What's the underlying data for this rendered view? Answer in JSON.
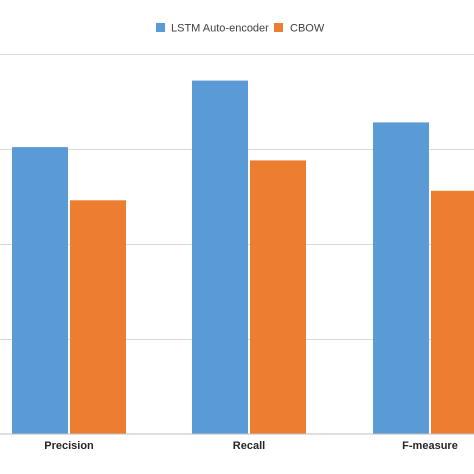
{
  "chart_data": {
    "type": "bar",
    "title": "",
    "xlabel": "",
    "ylabel": "",
    "categories": [
      "Precision",
      "Recall",
      "F-measure"
    ],
    "series": [
      {
        "name": "LSTM Auto-encoder",
        "color": "#5b9bd5",
        "values": [
          0.302,
          0.372,
          0.328
        ]
      },
      {
        "name": "CBOW",
        "color": "#ed7d31",
        "values": [
          0.246,
          0.288,
          0.256
        ]
      }
    ],
    "ylim": [
      0,
      0.4
    ],
    "y_gridlines": [
      0,
      0.1,
      0.2,
      0.3,
      0.4
    ],
    "grid": true,
    "legend_position": "top-center"
  }
}
